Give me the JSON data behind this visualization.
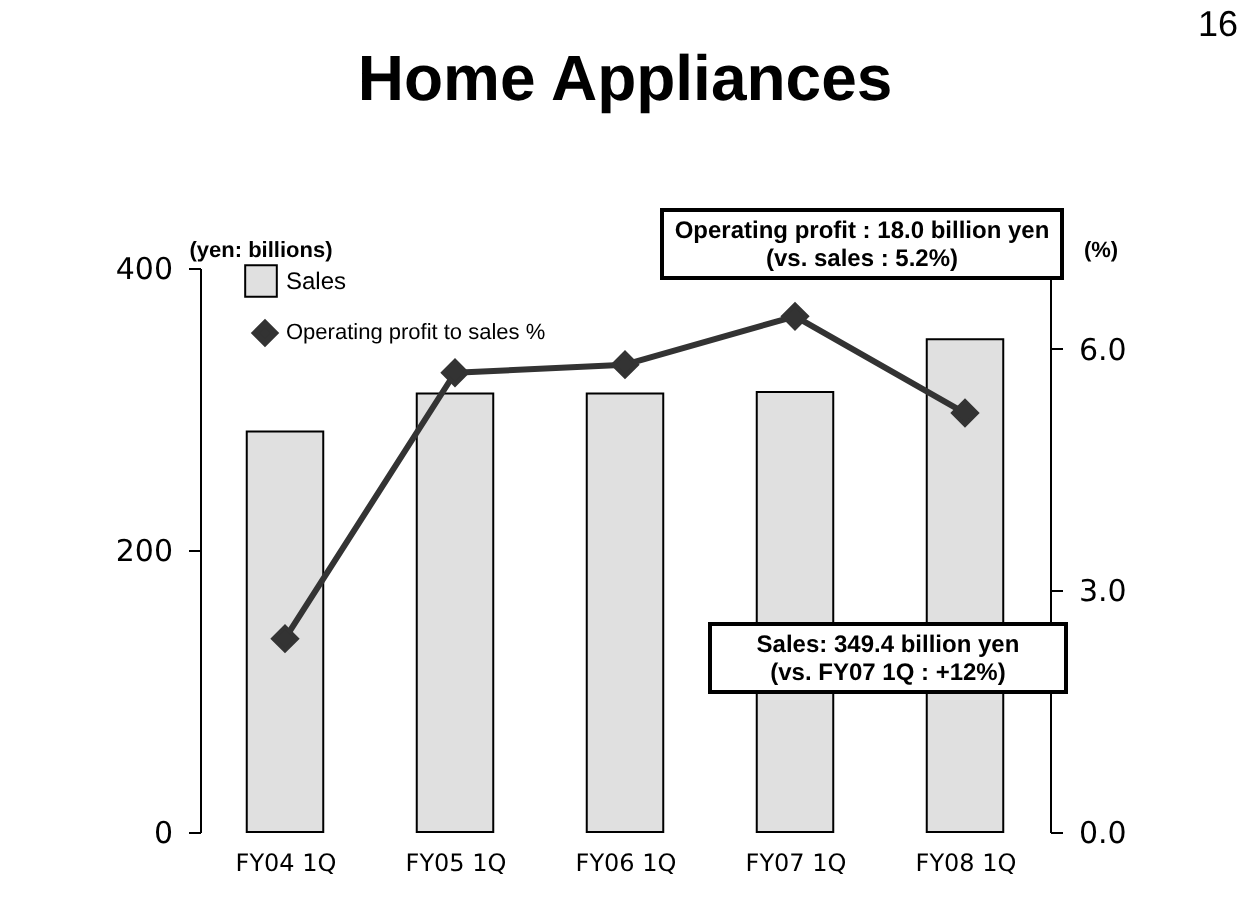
{
  "chart_data": {
    "type": "bar",
    "title": "Home Appliances",
    "categories": [
      "FY04 1Q",
      "FY05 1Q",
      "FY06 1Q",
      "FY07 1Q",
      "FY08 1Q"
    ],
    "series": [
      {
        "name": "Sales",
        "color": "#e0e0e0",
        "values": [
          284,
          311,
          311,
          312,
          349.4
        ]
      },
      {
        "name": "Operating profit to sales %",
        "type": "line",
        "axis": "y2",
        "color": "#333333",
        "marker": "diamond",
        "values": [
          2.4,
          5.7,
          5.8,
          6.4,
          5.2
        ]
      }
    ],
    "ylabel": "(yen: billions)",
    "y2label": "(%)",
    "ylim": [
      0,
      400
    ],
    "yticks": [
      0,
      200,
      400
    ],
    "y2lim": [
      0,
      7
    ],
    "y2ticks": [
      {
        "value": 0,
        "label": "0.0"
      },
      {
        "value": 3,
        "label": "3.0"
      },
      {
        "value": 6,
        "label": "6.0"
      }
    ],
    "legend": "top left",
    "grid": false,
    "annotations": [
      "16",
      "Operating profit : 18.0 billion yen\n(vs. sales : 5.2%)",
      "Sales: 349.4 billion yen\n(vs. FY07 1Q : +12%)"
    ]
  }
}
